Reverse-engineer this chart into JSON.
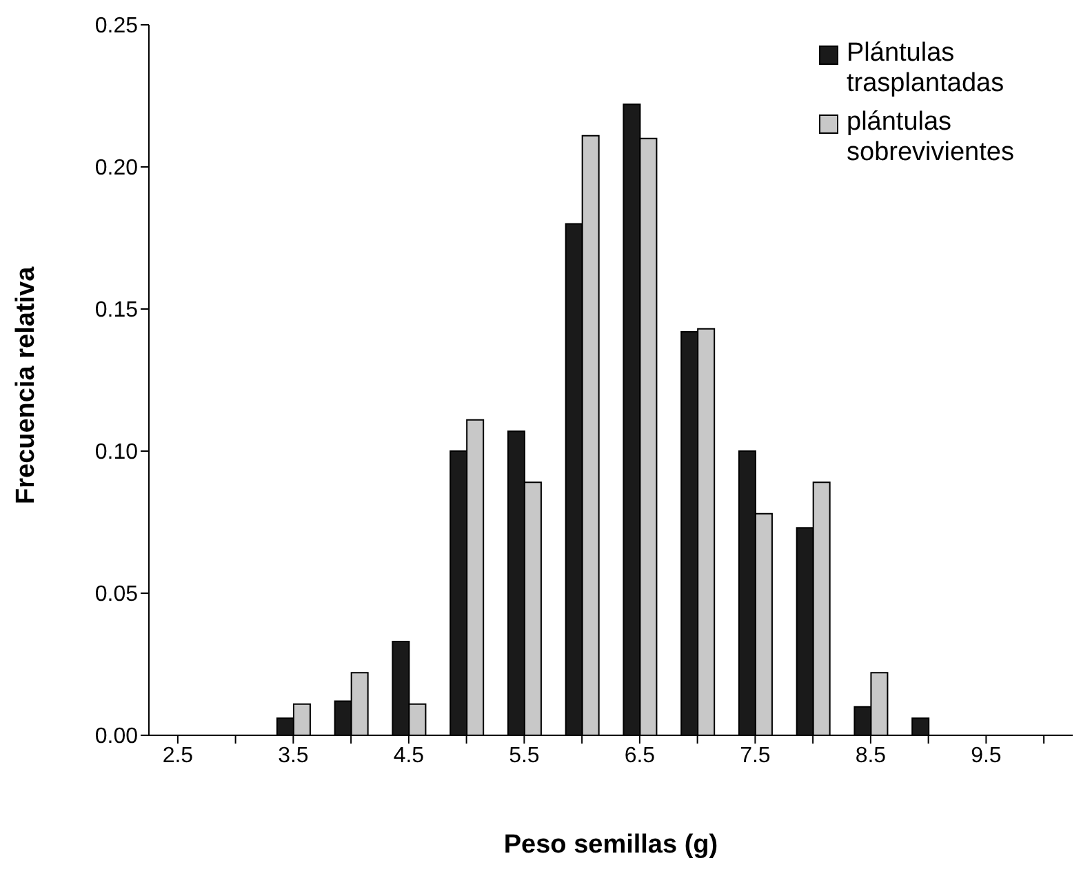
{
  "chart_data": {
    "type": "bar",
    "xlabel": "Peso semillas (g)",
    "ylabel": "Frecuencia relativa",
    "categories": [
      "2.5",
      null,
      "3.5",
      null,
      "4.5",
      null,
      "5.5",
      null,
      "6.5",
      null,
      "7.5",
      null,
      "8.5",
      null,
      "9.5",
      null
    ],
    "series": [
      {
        "name": "Plántulas trasplantadas",
        "color": "#1a1a1a",
        "values": [
          null,
          null,
          0.006,
          0.012,
          0.033,
          0.1,
          0.107,
          0.18,
          0.222,
          0.142,
          0.1,
          0.073,
          0.01,
          0.006,
          null,
          null
        ]
      },
      {
        "name": "plántulas sobrevivientes",
        "color": "#c8c8c8",
        "values": [
          null,
          null,
          0.011,
          0.022,
          0.011,
          0.111,
          0.089,
          0.211,
          0.21,
          0.143,
          0.078,
          0.089,
          0.022,
          null,
          null,
          null
        ]
      }
    ],
    "ylim": [
      0,
      0.25
    ],
    "yticks": [
      {
        "value": 0,
        "label": "0.00"
      },
      {
        "value": 0.05,
        "label": "0.05"
      },
      {
        "value": 0.1,
        "label": "0.10"
      },
      {
        "value": 0.15,
        "label": "0.15"
      },
      {
        "value": 0.2,
        "label": "0.20"
      },
      {
        "value": 0.25,
        "label": "0.25"
      }
    ],
    "grid": false,
    "legend": "top right"
  }
}
